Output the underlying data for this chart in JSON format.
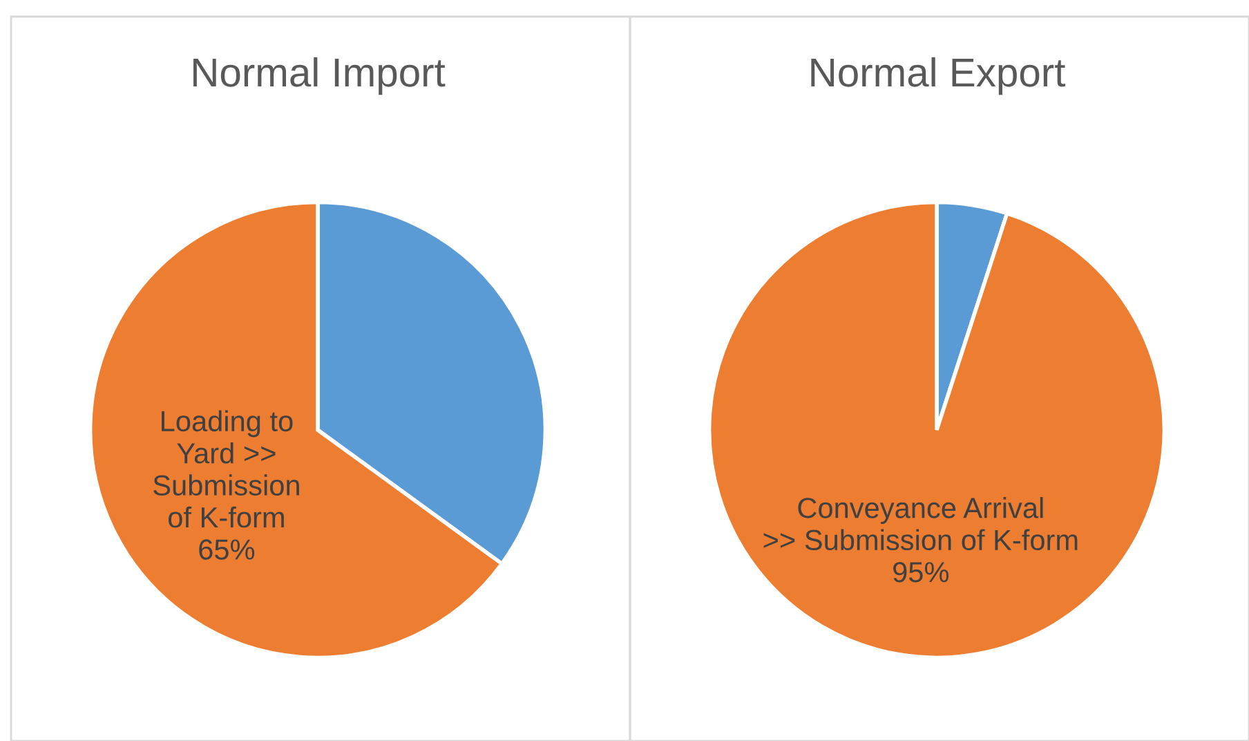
{
  "chart_data": [
    {
      "type": "pie",
      "title": "Normal Import",
      "categories": [
        null,
        "Loading to\nYard >>\nSubmission\nof K-form"
      ],
      "values": [
        35,
        65
      ],
      "colors": [
        "#5b9bd5",
        "#ed7d31"
      ],
      "value_labels": [
        null,
        "65%"
      ]
    },
    {
      "type": "pie",
      "title": "Normal Export",
      "categories": [
        null,
        "Conveyance Arrival\n>> Submission of K-form"
      ],
      "values": [
        5,
        95
      ],
      "colors": [
        "#5b9bd5",
        "#ed7d31"
      ],
      "value_labels": [
        null,
        "95%"
      ]
    }
  ]
}
